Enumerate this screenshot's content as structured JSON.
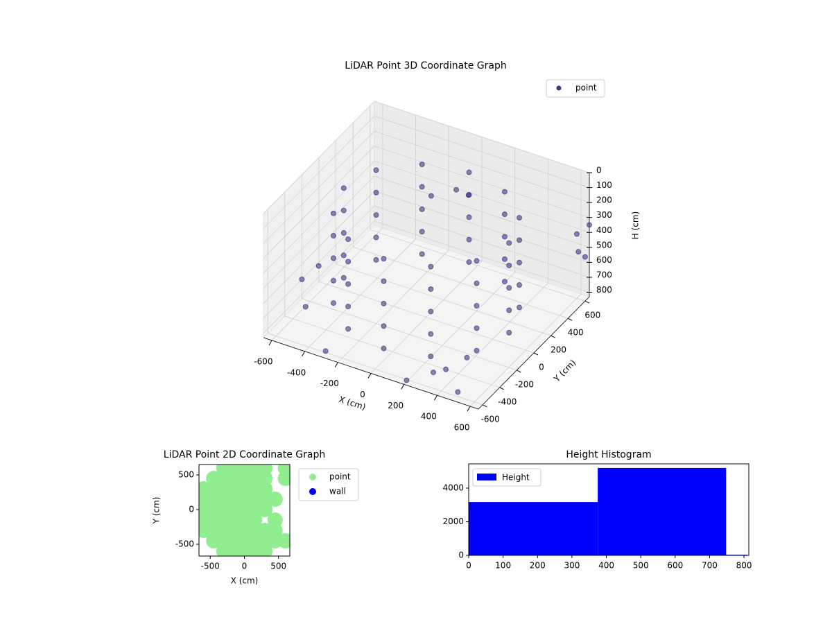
{
  "chart_data": [
    {
      "type": "scatter3d",
      "title": "LiDAR Point 3D Coordinate Graph",
      "xlabel": "X (cm)",
      "ylabel": "Y (cm)",
      "zlabel": "H (cm)",
      "xlim": [
        -650,
        650
      ],
      "ylim": [
        -650,
        650
      ],
      "zlim": [
        830,
        0
      ],
      "xticks": [
        -600,
        -400,
        -200,
        0,
        200,
        400,
        600
      ],
      "yticks": [
        -600,
        -400,
        -200,
        0,
        200,
        400,
        600
      ],
      "zticks": [
        0,
        100,
        200,
        300,
        400,
        500,
        600,
        700,
        800
      ],
      "grid": true,
      "legend": "upper right",
      "series": [
        {
          "name": "point",
          "color": "#46307e",
          "x": [
            500,
            433,
            250,
            0,
            -250,
            -433,
            -500,
            -433,
            -250,
            0,
            250,
            433,
            500,
            433,
            250,
            0,
            -250,
            -433,
            -500,
            -433,
            -250,
            0,
            250,
            433,
            500,
            433,
            250,
            0,
            -250,
            -433,
            -500,
            -433,
            -250,
            0,
            250,
            433,
            500,
            433,
            250,
            0,
            -250,
            -433,
            -500,
            -433,
            -250,
            0,
            250,
            433,
            500,
            433,
            250,
            0,
            -250,
            -433,
            -500,
            -433,
            -250,
            0,
            250,
            433,
            -650,
            -600,
            600,
            620,
            500,
            300,
            100,
            0,
            -100,
            650,
            640,
            400,
            -300,
            -550,
            200,
            350
          ],
          "y": [
            0,
            250,
            433,
            500,
            433,
            250,
            0,
            -250,
            -433,
            -500,
            -433,
            -250,
            0,
            250,
            433,
            500,
            433,
            250,
            0,
            -250,
            -433,
            -500,
            -433,
            -250,
            0,
            250,
            433,
            500,
            433,
            250,
            0,
            -250,
            -433,
            -500,
            -433,
            -250,
            0,
            250,
            433,
            500,
            433,
            250,
            0,
            -250,
            -433,
            -500,
            -433,
            -250,
            0,
            250,
            433,
            500,
            433,
            250,
            0,
            -250,
            -433,
            -500,
            -433,
            -250,
            -200,
            -100,
            600,
            580,
            -600,
            -500,
            300,
            350,
            250,
            650,
            620,
            -300,
            -600,
            -350,
            -620,
            -450
          ],
          "z": [
            150,
            150,
            150,
            150,
            150,
            150,
            150,
            150,
            150,
            150,
            150,
            150,
            300,
            300,
            300,
            300,
            300,
            300,
            300,
            300,
            300,
            300,
            300,
            300,
            450,
            450,
            450,
            450,
            450,
            450,
            450,
            450,
            450,
            450,
            450,
            450,
            600,
            600,
            600,
            600,
            600,
            600,
            600,
            600,
            600,
            600,
            600,
            600,
            750,
            750,
            750,
            750,
            750,
            750,
            750,
            750,
            750,
            750,
            750,
            750,
            700,
            650,
            400,
            500,
            800,
            800,
            150,
            180,
            200,
            350,
            550,
            780,
            820,
            760,
            820,
            790
          ]
        }
      ]
    },
    {
      "type": "scatter",
      "title": "LiDAR Point 2D Coordinate Graph",
      "xlabel": "X (cm)",
      "ylabel": "Y (cm)",
      "xlim": [
        -665,
        665
      ],
      "ylim": [
        -670,
        650
      ],
      "xticks": [
        -500,
        0,
        500
      ],
      "yticks": [
        -500,
        0,
        500
      ],
      "legend": "outside upper right",
      "series": [
        {
          "name": "point",
          "color": "#90ee90",
          "x": [
            -300,
            -150,
            0,
            150,
            300,
            600,
            -450,
            -300,
            -150,
            0,
            150,
            300,
            600,
            -600,
            -450,
            -300,
            -150,
            0,
            150,
            300,
            -600,
            -450,
            -300,
            -150,
            0,
            150,
            300,
            450,
            -600,
            -450,
            -300,
            -150,
            0,
            150,
            300,
            -600,
            -450,
            -300,
            -150,
            0,
            150,
            450,
            -600,
            -450,
            -300,
            -150,
            0,
            150,
            300,
            450,
            -450,
            -300,
            -150,
            0,
            150,
            300,
            450,
            600,
            -300,
            -150,
            0,
            150,
            300
          ],
          "y": [
            600,
            600,
            600,
            600,
            600,
            600,
            450,
            450,
            450,
            450,
            450,
            450,
            450,
            300,
            300,
            300,
            300,
            300,
            300,
            300,
            150,
            150,
            150,
            150,
            150,
            150,
            150,
            150,
            0,
            0,
            0,
            0,
            0,
            0,
            0,
            -150,
            -150,
            -150,
            -150,
            -150,
            -150,
            -150,
            -300,
            -300,
            -300,
            -300,
            -300,
            -300,
            -300,
            -300,
            -450,
            -450,
            -450,
            -450,
            -450,
            -450,
            -450,
            -450,
            -600,
            -600,
            -600,
            -600,
            -600
          ]
        },
        {
          "name": "wall",
          "color": "#0000ff",
          "x": [],
          "y": []
        }
      ]
    },
    {
      "type": "histogram",
      "title": "Height Histogram",
      "xlim": [
        0,
        814
      ],
      "ylim": [
        0,
        5443
      ],
      "xticks": [
        0,
        100,
        200,
        300,
        400,
        500,
        600,
        700,
        800
      ],
      "yticks": [
        0,
        2000,
        4000
      ],
      "legend": "upper left",
      "series": [
        {
          "name": "Height",
          "color": "#0000ff",
          "bins": [
            0,
            375,
            748,
            810
          ],
          "values": [
            3170,
            5200,
            40
          ]
        }
      ]
    }
  ]
}
